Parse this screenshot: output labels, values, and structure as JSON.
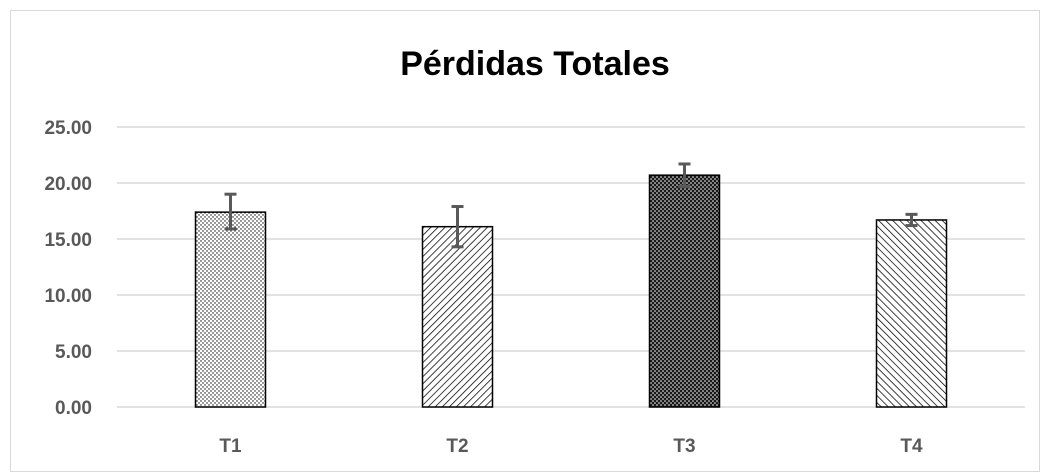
{
  "chart_data": {
    "type": "bar",
    "title": "Pérdidas Totales",
    "xlabel": "",
    "ylabel": "",
    "categories": [
      "T1",
      "T2",
      "T3",
      "T4"
    ],
    "values": [
      17.4,
      16.1,
      20.7,
      16.7
    ],
    "error_bars": [
      {
        "low": 15.9,
        "high": 19.0
      },
      {
        "low": 14.3,
        "high": 17.9
      },
      {
        "low": 19.7,
        "high": 21.7
      },
      {
        "low": 16.2,
        "high": 17.2
      }
    ],
    "ylim": [
      0,
      25
    ],
    "y_ticks": [
      "0.00",
      "5.00",
      "10.00",
      "15.00",
      "20.00",
      "25.00"
    ],
    "y_tick_values": [
      0,
      5,
      10,
      15,
      20,
      25
    ],
    "grid": true,
    "legend": "none",
    "bar_patterns": [
      "dots-light",
      "diagonal-left",
      "dots-dense",
      "diagonal-right"
    ],
    "colors": {
      "bar_outline": "#000000",
      "pattern_ink": "#000000",
      "gridline": "#d9d9d9",
      "error_bar": "#595959",
      "tick_label": "#595959",
      "title": "#000000"
    }
  }
}
